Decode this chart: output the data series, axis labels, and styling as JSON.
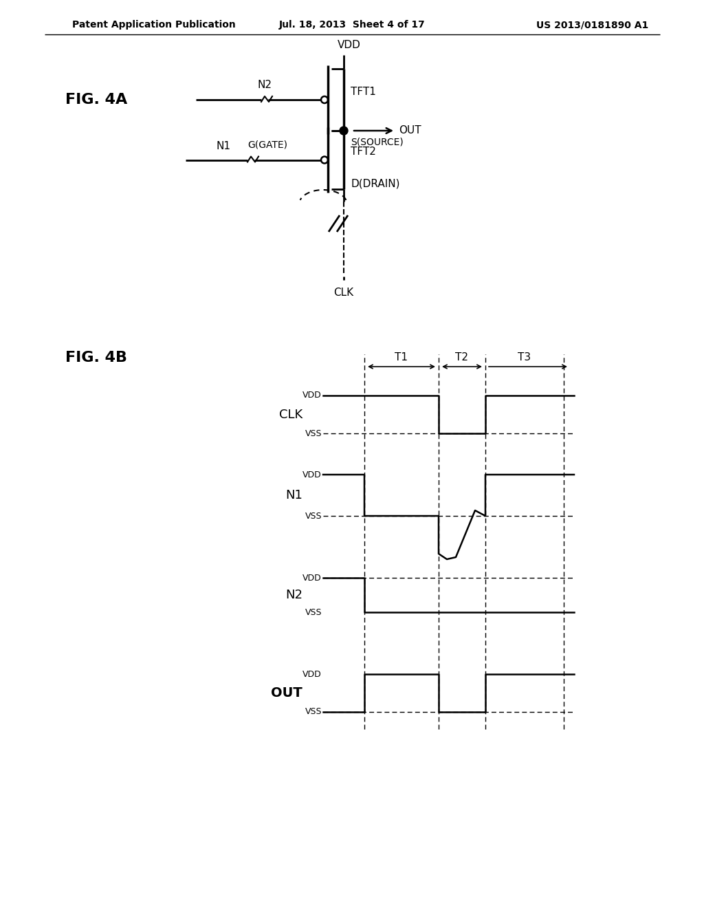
{
  "header_left": "Patent Application Publication",
  "header_mid": "Jul. 18, 2013  Sheet 4 of 17",
  "header_right": "US 2013/0181890 A1",
  "fig4a_label": "FIG. 4A",
  "fig4b_label": "FIG. 4B",
  "background_color": "#ffffff",
  "text_color": "#000000",
  "line_color": "#000000",
  "vdd_label": "VDD",
  "clk_label": "CLK",
  "out_label": "OUT",
  "tft1_label": "TFT1",
  "tft2_label": "TFT2",
  "n1_label": "N1",
  "n2_label": "N2",
  "source_label": "S(SOURCE)",
  "gate_label": "G(GATE)",
  "drain_label": "D(DRAIN)",
  "t1_label": "T1",
  "t2_label": "T2",
  "t3_label": "T3",
  "vss_label": "VSS"
}
